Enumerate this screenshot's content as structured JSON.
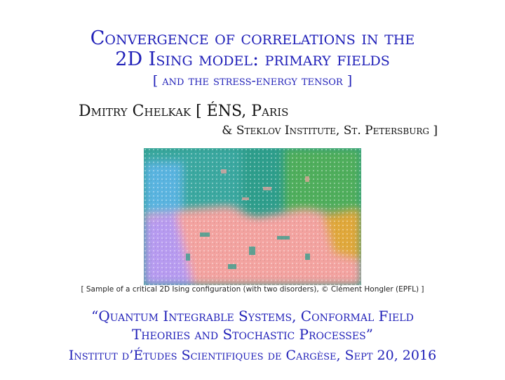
{
  "title": {
    "line1": "Convergence of correlations in the",
    "line2": "2D Ising model: primary fields"
  },
  "subtitle": "[ and the stress-energy tensor ]",
  "author": {
    "name_line": "Dmitry Chelkak [ ÉNS, Paris",
    "affiliation_line": "& Steklov Institute, St. Petersburg ]"
  },
  "figure": {
    "caption": "[ Sample of a critical 2D Ising configuration (with two disorders), © Clément Hongler (EPFL) ]",
    "colors": {
      "teal": "#2e9e8c",
      "green": "#4fae5b",
      "sky": "#5ab4e0",
      "lavender": "#b79bf0",
      "pink": "#f3a3a0",
      "orange": "#e0a83a"
    }
  },
  "conference": {
    "line1": "“Quantum Integrable Systems, Conformal Field",
    "line2": "Theories and Stochastic Processes”"
  },
  "venue": "Institut d’Études Scientifiques de Cargèse, Sept 20, 2016",
  "accent_color": "#1f1fb8"
}
